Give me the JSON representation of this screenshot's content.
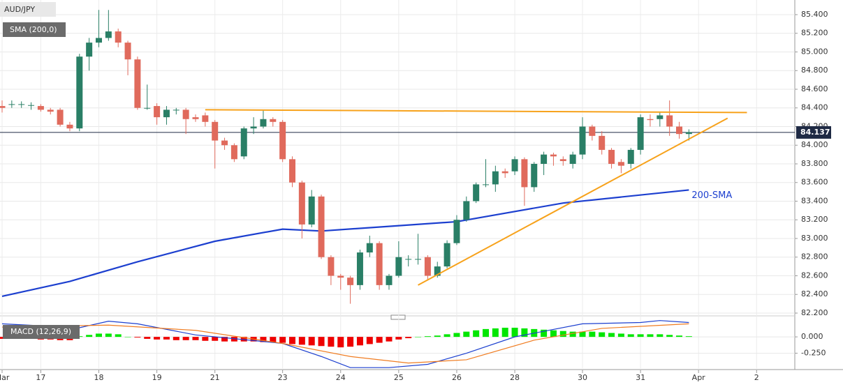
{
  "chart_data": [
    {
      "type": "candlestick",
      "title": "AUD/JPY",
      "legend": "SMA (200,0)",
      "categories": [
        "Mar",
        null,
        null,
        null,
        "17",
        null,
        null,
        null,
        null,
        null,
        "18",
        null,
        null,
        null,
        null,
        null,
        "19",
        null,
        null,
        null,
        null,
        null,
        "21",
        null,
        null,
        null,
        null,
        null,
        null,
        "23",
        null,
        null,
        null,
        null,
        null,
        "24",
        null,
        null,
        null,
        null,
        null,
        "25",
        null,
        null,
        null,
        null,
        null,
        "26",
        null,
        null,
        null,
        null,
        null,
        "28",
        null,
        null,
        null,
        null,
        null,
        null,
        "30",
        null,
        null,
        null,
        null,
        null,
        "31",
        null,
        null,
        null,
        null,
        null,
        "Apr",
        null,
        null,
        null,
        null,
        null,
        "2"
      ],
      "open": [
        84.42,
        84.44,
        84.44,
        84.43,
        84.42,
        84.38,
        84.38,
        84.22,
        84.18,
        84.95,
        85.1,
        85.15,
        85.22,
        85.1,
        84.92,
        84.4,
        84.42,
        84.3,
        84.38,
        84.38,
        84.3,
        84.32,
        84.25,
        84.05,
        84.0,
        83.88,
        84.18,
        84.2,
        84.28,
        84.25,
        83.85,
        83.6,
        83.15,
        83.45,
        82.8,
        82.6,
        82.58,
        82.5,
        82.85,
        82.95,
        82.5,
        82.6,
        82.78,
        82.78,
        82.8,
        82.6,
        82.7,
        82.95,
        83.2,
        83.4,
        83.58,
        83.58,
        83.72,
        83.72,
        83.85,
        83.55,
        83.8,
        83.9,
        83.85,
        83.8,
        83.9,
        84.2,
        84.1,
        83.95,
        83.82,
        83.8,
        83.95,
        84.28,
        84.28,
        84.32,
        84.2,
        84.12,
        null,
        null,
        null,
        null,
        null,
        null,
        null
      ],
      "high": [
        84.48,
        84.48,
        84.47,
        84.46,
        84.44,
        84.4,
        84.4,
        84.25,
        84.98,
        85.15,
        85.45,
        85.45,
        85.25,
        85.12,
        84.95,
        84.65,
        84.45,
        84.42,
        84.4,
        84.4,
        84.33,
        84.35,
        84.27,
        84.08,
        84.02,
        84.2,
        84.3,
        84.38,
        84.3,
        84.27,
        83.88,
        83.62,
        83.52,
        83.47,
        82.82,
        82.62,
        82.6,
        82.88,
        83.03,
        82.97,
        82.62,
        82.97,
        82.82,
        83.05,
        82.82,
        82.75,
        82.98,
        83.25,
        83.45,
        83.6,
        83.85,
        83.78,
        83.75,
        83.88,
        83.87,
        83.82,
        83.93,
        83.92,
        83.88,
        83.93,
        84.3,
        84.22,
        84.15,
        83.97,
        83.85,
        83.97,
        84.33,
        84.33,
        84.35,
        84.48,
        84.25,
        84.17,
        null,
        null,
        null,
        null,
        null,
        null,
        null
      ],
      "low": [
        84.35,
        84.4,
        84.4,
        84.38,
        84.36,
        84.33,
        84.2,
        84.15,
        84.15,
        84.8,
        85.05,
        85.12,
        85.05,
        84.75,
        84.38,
        84.38,
        84.22,
        84.22,
        84.33,
        84.12,
        84.25,
        84.2,
        83.75,
        83.95,
        83.82,
        83.85,
        84.12,
        84.18,
        84.2,
        83.82,
        83.55,
        83.0,
        83.12,
        82.78,
        82.5,
        82.45,
        82.3,
        82.45,
        82.8,
        82.45,
        82.45,
        82.58,
        82.7,
        82.72,
        82.55,
        82.58,
        82.68,
        82.93,
        83.18,
        83.38,
        83.55,
        83.5,
        83.65,
        83.68,
        83.35,
        83.5,
        83.68,
        83.78,
        83.78,
        83.75,
        83.85,
        84.05,
        83.9,
        83.75,
        83.7,
        83.75,
        83.9,
        84.2,
        84.2,
        84.1,
        84.07,
        84.05,
        null,
        null,
        null,
        null,
        null,
        null,
        null
      ],
      "close": [
        84.4,
        84.44,
        84.44,
        84.43,
        84.38,
        84.36,
        84.22,
        84.18,
        84.95,
        85.1,
        85.15,
        85.22,
        85.1,
        84.92,
        84.4,
        84.4,
        84.3,
        84.38,
        84.38,
        84.28,
        84.28,
        84.25,
        84.05,
        84.0,
        83.85,
        84.18,
        84.2,
        84.28,
        84.25,
        83.85,
        83.6,
        83.15,
        83.45,
        82.8,
        82.6,
        82.58,
        82.5,
        82.85,
        82.95,
        82.5,
        82.6,
        82.8,
        82.78,
        82.78,
        82.6,
        82.7,
        82.95,
        83.2,
        83.4,
        83.58,
        83.58,
        83.72,
        83.7,
        83.85,
        83.55,
        83.8,
        83.9,
        83.88,
        83.83,
        83.9,
        84.2,
        84.1,
        83.95,
        83.8,
        83.78,
        83.95,
        84.3,
        84.27,
        84.32,
        84.2,
        84.12,
        84.14,
        null,
        null,
        null,
        null,
        null,
        null,
        null
      ],
      "up_color": "#2a7f66",
      "down_color": "#e06a5c",
      "sma": {
        "name": "200-SMA",
        "color": "#1c3fcf",
        "x": [
          0,
          7,
          14,
          22,
          29,
          33,
          40,
          47,
          58,
          71
        ],
        "values": [
          82.38,
          82.54,
          82.75,
          82.97,
          83.1,
          83.08,
          83.13,
          83.18,
          83.38,
          83.52
        ]
      },
      "trendlines": [
        {
          "color": "#f7a21b",
          "x": [
            21,
            77
          ],
          "values": [
            84.38,
            84.35
          ]
        },
        {
          "color": "#f7a21b",
          "x": [
            43,
            75
          ],
          "values": [
            82.5,
            84.29
          ]
        }
      ],
      "last_price": 84.137,
      "ylim": [
        82.17,
        85.557
      ],
      "yticks": [
        {
          "value": 82.2,
          "label": "82.200"
        },
        {
          "value": 82.4,
          "label": "82.400"
        },
        {
          "value": 82.6,
          "label": "82.600"
        },
        {
          "value": 82.8,
          "label": "82.800"
        },
        {
          "value": 83.0,
          "label": "83.000"
        },
        {
          "value": 83.2,
          "label": "83.200"
        },
        {
          "value": 83.4,
          "label": "83.400"
        },
        {
          "value": 83.6,
          "label": "83.600"
        },
        {
          "value": 83.8,
          "label": "83.800"
        },
        {
          "value": 84.0,
          "label": "84.000"
        },
        {
          "value": 84.2,
          "label": "84.200"
        },
        {
          "value": 84.4,
          "label": "84.400"
        },
        {
          "value": 84.6,
          "label": "84.600"
        },
        {
          "value": 84.8,
          "label": "84.800"
        },
        {
          "value": 85.0,
          "label": "85.000"
        },
        {
          "value": 85.2,
          "label": "85.200"
        },
        {
          "value": 85.4,
          "label": "85.400"
        }
      ],
      "grid": true
    },
    {
      "type": "macd",
      "title": "MACD (12,26,9)",
      "histogram": [
        -0.03,
        -0.03,
        -0.03,
        -0.03,
        -0.04,
        -0.04,
        -0.05,
        -0.05,
        0.01,
        0.03,
        0.05,
        0.05,
        0.04,
        0.0,
        -0.01,
        -0.03,
        -0.04,
        -0.04,
        -0.05,
        -0.05,
        -0.05,
        -0.06,
        -0.06,
        -0.07,
        -0.07,
        -0.07,
        -0.07,
        -0.08,
        -0.08,
        -0.09,
        -0.11,
        -0.12,
        -0.13,
        -0.14,
        -0.15,
        -0.16,
        -0.15,
        -0.13,
        -0.11,
        -0.09,
        -0.07,
        -0.04,
        -0.02,
        0.0,
        0.01,
        0.02,
        0.04,
        0.06,
        0.08,
        0.1,
        0.12,
        0.13,
        0.14,
        0.14,
        0.13,
        0.12,
        0.11,
        0.1,
        0.09,
        0.08,
        0.08,
        0.08,
        0.07,
        0.06,
        0.05,
        0.04,
        0.04,
        0.04,
        0.04,
        0.03,
        0.02,
        0.01
      ],
      "up_color": "#00e600",
      "down_color": "#ee0000",
      "series": [
        {
          "color": "#1c3fcf",
          "x": [
            0,
            8,
            11,
            14,
            20,
            29,
            33,
            36,
            40,
            44,
            48,
            53,
            60,
            66,
            68,
            71
          ],
          "values": [
            0.2,
            0.14,
            0.24,
            0.2,
            0.03,
            -0.1,
            -0.3,
            -0.47,
            -0.47,
            -0.42,
            -0.25,
            0.0,
            0.2,
            0.22,
            0.25,
            0.22
          ]
        },
        {
          "color": "#f07c20",
          "x": [
            0,
            11,
            20,
            29,
            36,
            42,
            48,
            55,
            62,
            71
          ],
          "values": [
            0.15,
            0.18,
            0.1,
            -0.1,
            -0.3,
            -0.4,
            -0.35,
            -0.05,
            0.13,
            0.2
          ]
        }
      ],
      "ylim": [
        -0.5,
        0.3
      ],
      "yticks": [
        {
          "value": 0,
          "label": "0.000"
        },
        {
          "value": -0.25,
          "label": "-0.250"
        }
      ]
    }
  ]
}
